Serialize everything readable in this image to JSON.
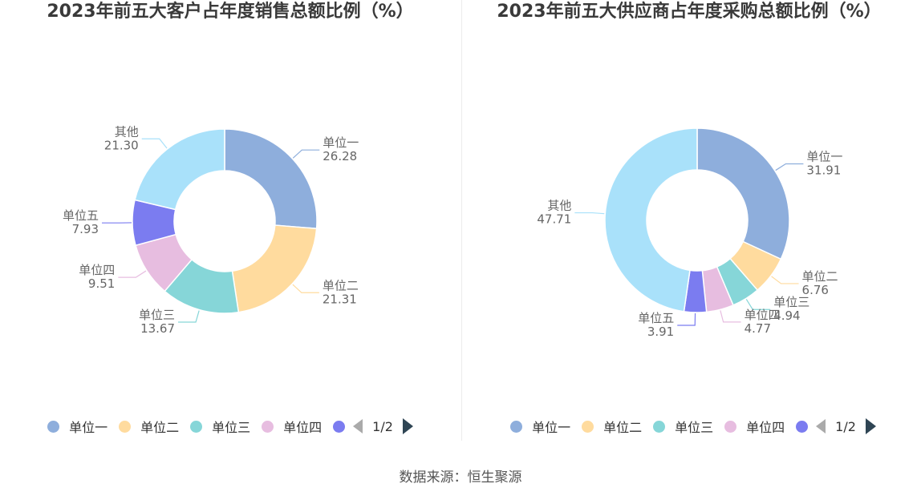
{
  "charts": [
    {
      "title": "2023年前五大客户占年度销售总额比例（%）",
      "legend": {
        "items": [
          "单位一",
          "单位二",
          "单位三",
          "单位四",
          ""
        ],
        "page": "1/2"
      }
    },
    {
      "title": "2023年前五大供应商占年度采购总额比例（%）",
      "legend": {
        "items": [
          "单位一",
          "单位二",
          "单位三",
          "单位四",
          ""
        ],
        "page": "1/2"
      }
    }
  ],
  "chart_data": [
    {
      "type": "pie",
      "variant": "donut",
      "title": "2023年前五大客户占年度销售总额比例（%）",
      "labels": [
        "单位一",
        "单位二",
        "单位三",
        "单位四",
        "单位五",
        "其他"
      ],
      "values": [
        26.28,
        21.31,
        13.67,
        9.51,
        7.93,
        21.3
      ],
      "value_labels": [
        "26.28",
        "21.31",
        "13.67",
        "9.51",
        "7.93",
        "21.30"
      ],
      "colors": [
        "#8eaedc",
        "#ffdb9e",
        "#86d6d8",
        "#e7bde0",
        "#7b7cf0",
        "#a9e1fa"
      ],
      "legend_position": "bottom"
    },
    {
      "type": "pie",
      "variant": "donut",
      "title": "2023年前五大供应商占年度采购总额比例（%）",
      "labels": [
        "单位一",
        "单位二",
        "单位三",
        "单位四",
        "单位五",
        "其他"
      ],
      "values": [
        31.91,
        6.76,
        4.94,
        4.77,
        3.91,
        47.71
      ],
      "value_labels": [
        "31.91",
        "6.76",
        "4.94",
        "4.77",
        "3.91",
        "47.71"
      ],
      "colors": [
        "#8eaedc",
        "#ffdb9e",
        "#86d6d8",
        "#e7bde0",
        "#7b7cf0",
        "#a9e1fa"
      ],
      "legend_position": "bottom"
    }
  ],
  "source": "数据来源：恒生聚源"
}
